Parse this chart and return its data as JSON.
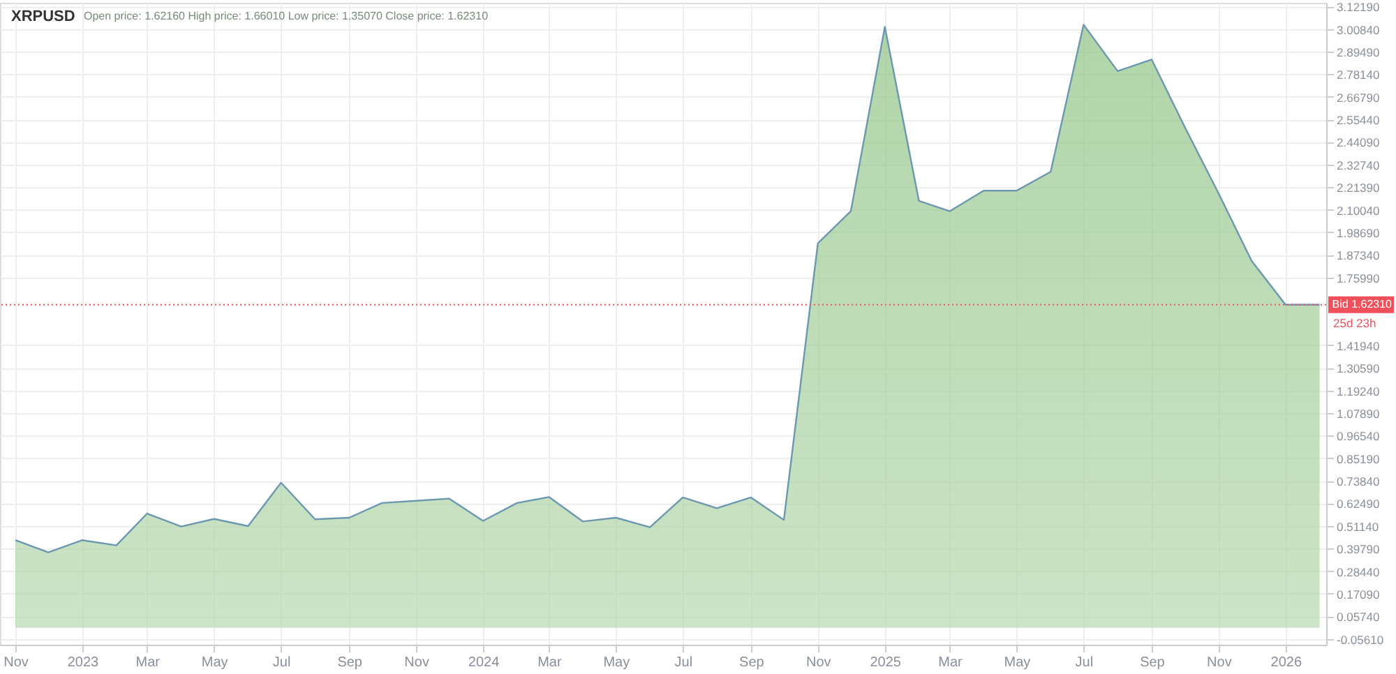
{
  "chart_data": {
    "type": "area",
    "title": "XRPUSD",
    "subtitle": "Open price: 1.62160    High price: 1.66010    Low price: 1.35070    Close price: 1.62310",
    "x": [
      "2022-11-01",
      "2022-12-01",
      "2023-01-01",
      "2023-02-01",
      "2023-03-01",
      "2023-04-01",
      "2023-05-01",
      "2023-06-01",
      "2023-07-01",
      "2023-08-01",
      "2023-09-01",
      "2023-10-01",
      "2023-11-01",
      "2023-12-01",
      "2024-01-01",
      "2024-02-01",
      "2024-03-01",
      "2024-04-01",
      "2024-05-01",
      "2024-06-01",
      "2024-07-01",
      "2024-08-01",
      "2024-09-01",
      "2024-10-01",
      "2024-11-01",
      "2024-12-01",
      "2025-01-01",
      "2025-02-01",
      "2025-03-01",
      "2025-04-01",
      "2025-05-01",
      "2025-06-01",
      "2025-07-01",
      "2025-08-01",
      "2025-09-01",
      "2025-10-01",
      "2025-11-01",
      "2025-12-01",
      "2026-01-01",
      "2026-02-01"
    ],
    "series": [
      {
        "color": "#8fc384",
        "values": [
          0.44,
          0.379,
          0.44,
          0.414,
          0.574,
          0.509,
          0.547,
          0.511,
          0.729,
          0.545,
          0.553,
          0.627,
          0.638,
          0.649,
          0.537,
          0.627,
          0.657,
          0.534,
          0.553,
          0.505,
          0.655,
          0.601,
          0.655,
          0.542,
          1.932,
          2.093,
          3.019,
          2.145,
          2.093,
          2.196,
          2.196,
          2.291,
          3.03,
          2.797,
          2.855,
          2.518,
          2.182,
          1.844,
          1.623,
          1.623
        ]
      }
    ],
    "xlim": [
      "2022-10-18",
      "2026-02-07"
    ],
    "xticks": [
      {
        "value": "2022-11-01",
        "label": "Nov"
      },
      {
        "value": "2023-01-01",
        "label": "2023"
      },
      {
        "value": "2023-03-01",
        "label": "Mar"
      },
      {
        "value": "2023-05-01",
        "label": "May"
      },
      {
        "value": "2023-07-01",
        "label": "Jul"
      },
      {
        "value": "2023-09-01",
        "label": "Sep"
      },
      {
        "value": "2023-11-01",
        "label": "Nov"
      },
      {
        "value": "2024-01-01",
        "label": "2024"
      },
      {
        "value": "2024-03-01",
        "label": "Mar"
      },
      {
        "value": "2024-05-01",
        "label": "May"
      },
      {
        "value": "2024-07-01",
        "label": "Jul"
      },
      {
        "value": "2024-09-01",
        "label": "Sep"
      },
      {
        "value": "2024-11-01",
        "label": "Nov"
      },
      {
        "value": "2025-01-01",
        "label": "2025"
      },
      {
        "value": "2025-03-01",
        "label": "Mar"
      },
      {
        "value": "2025-05-01",
        "label": "May"
      },
      {
        "value": "2025-07-01",
        "label": "Jul"
      },
      {
        "value": "2025-09-01",
        "label": "Sep"
      },
      {
        "value": "2025-11-01",
        "label": "Nov"
      },
      {
        "value": "2026-01-01",
        "label": "2026"
      }
    ],
    "ylim": [
      -0.085,
      3.14
    ],
    "yticks": [
      {
        "value": -0.0561,
        "label": "-0.05610"
      },
      {
        "value": 0.0574,
        "label": "0.05740"
      },
      {
        "value": 0.1709,
        "label": "0.17090"
      },
      {
        "value": 0.2844,
        "label": "0.28440"
      },
      {
        "value": 0.3979,
        "label": "0.39790"
      },
      {
        "value": 0.5114,
        "label": "0.51140"
      },
      {
        "value": 0.6249,
        "label": "0.62490"
      },
      {
        "value": 0.7384,
        "label": "0.73840"
      },
      {
        "value": 0.8519,
        "label": "0.85190"
      },
      {
        "value": 0.9654,
        "label": "0.96540"
      },
      {
        "value": 1.0789,
        "label": "1.07890"
      },
      {
        "value": 1.1924,
        "label": "1.19240"
      },
      {
        "value": 1.3059,
        "label": "1.30590"
      },
      {
        "value": 1.4194,
        "label": "1.41940"
      },
      {
        "value": 1.7599,
        "label": "1.75990"
      },
      {
        "value": 1.8734,
        "label": "1.87340"
      },
      {
        "value": 1.9869,
        "label": "1.98690"
      },
      {
        "value": 2.1004,
        "label": "2.10040"
      },
      {
        "value": 2.2139,
        "label": "2.21390"
      },
      {
        "value": 2.3274,
        "label": "2.32740"
      },
      {
        "value": 2.4409,
        "label": "2.44090"
      },
      {
        "value": 2.5544,
        "label": "2.55440"
      },
      {
        "value": 2.6679,
        "label": "2.66790"
      },
      {
        "value": 2.7814,
        "label": "2.78140"
      },
      {
        "value": 2.8949,
        "label": "2.89490"
      },
      {
        "value": 3.0084,
        "label": "3.00840"
      },
      {
        "value": 3.1219,
        "label": "3.12190"
      }
    ],
    "ref_lines": [
      {
        "axis": "y",
        "value": 1.6231,
        "label": "Bid 1.62310",
        "color": "#f0505a",
        "line_style": "dotted"
      }
    ],
    "annotations": [
      "25d 23h"
    ],
    "grid": true
  }
}
